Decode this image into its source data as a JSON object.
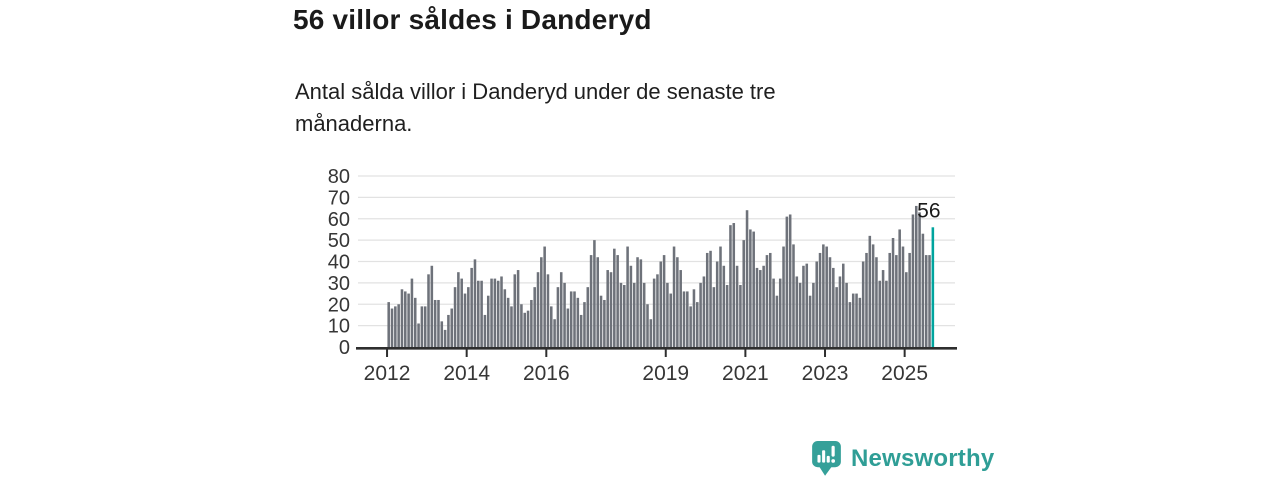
{
  "header": {
    "title": "56 villor såldes i Danderyd",
    "subtitle": "Antal sålda villor i Danderyd under de senaste tre månaderna."
  },
  "chart_data": {
    "type": "bar",
    "title": "56 villor såldes i Danderyd",
    "xlabel": "",
    "ylabel": "",
    "frequency": "monthly",
    "x_start": "2012-01",
    "x_end": "2025-09",
    "ylim": [
      0,
      80
    ],
    "yticks": [
      0,
      10,
      20,
      30,
      40,
      50,
      60,
      70,
      80
    ],
    "xticks": [
      2012,
      2014,
      2016,
      2019,
      2021,
      2023,
      2025
    ],
    "grid": true,
    "annotation_label": "56",
    "highlight_last": true,
    "values": [
      21,
      18,
      19,
      20,
      27,
      26,
      25,
      32,
      23,
      11,
      19,
      19,
      34,
      38,
      22,
      22,
      12,
      8,
      15,
      18,
      28,
      35,
      32,
      25,
      28,
      37,
      41,
      31,
      31,
      15,
      24,
      32,
      32,
      31,
      33,
      27,
      23,
      19,
      34,
      36,
      20,
      16,
      17,
      22,
      28,
      35,
      42,
      47,
      34,
      19,
      13,
      28,
      35,
      30,
      18,
      26,
      26,
      23,
      15,
      21,
      28,
      43,
      50,
      42,
      24,
      22,
      36,
      35,
      46,
      43,
      30,
      29,
      47,
      38,
      30,
      42,
      41,
      30,
      20,
      13,
      32,
      34,
      40,
      43,
      30,
      25,
      47,
      42,
      36,
      26,
      26,
      19,
      27,
      21,
      30,
      33,
      44,
      45,
      28,
      40,
      47,
      38,
      29,
      57,
      58,
      38,
      29,
      50,
      64,
      55,
      54,
      37,
      36,
      38,
      43,
      44,
      32,
      24,
      32,
      47,
      61,
      62,
      48,
      33,
      30,
      38,
      39,
      24,
      30,
      40,
      44,
      48,
      47,
      42,
      37,
      28,
      33,
      39,
      30,
      21,
      25,
      25,
      23,
      40,
      44,
      52,
      48,
      42,
      31,
      36,
      31,
      44,
      51,
      43,
      55,
      47,
      35,
      44,
      62,
      66,
      63,
      53,
      43,
      43,
      56
    ],
    "colors": {
      "bar": "#6e727a",
      "highlight": "#00a49e",
      "grid": "#e2e2e2",
      "axis": "#2e2e2e",
      "tick_label": "#363636",
      "annotation": "#1a1a1a"
    }
  },
  "branding": {
    "name": "Newsworthy",
    "icon": "newsworthy-chart-speech-bubble-icon",
    "color": "#2f9e96"
  }
}
